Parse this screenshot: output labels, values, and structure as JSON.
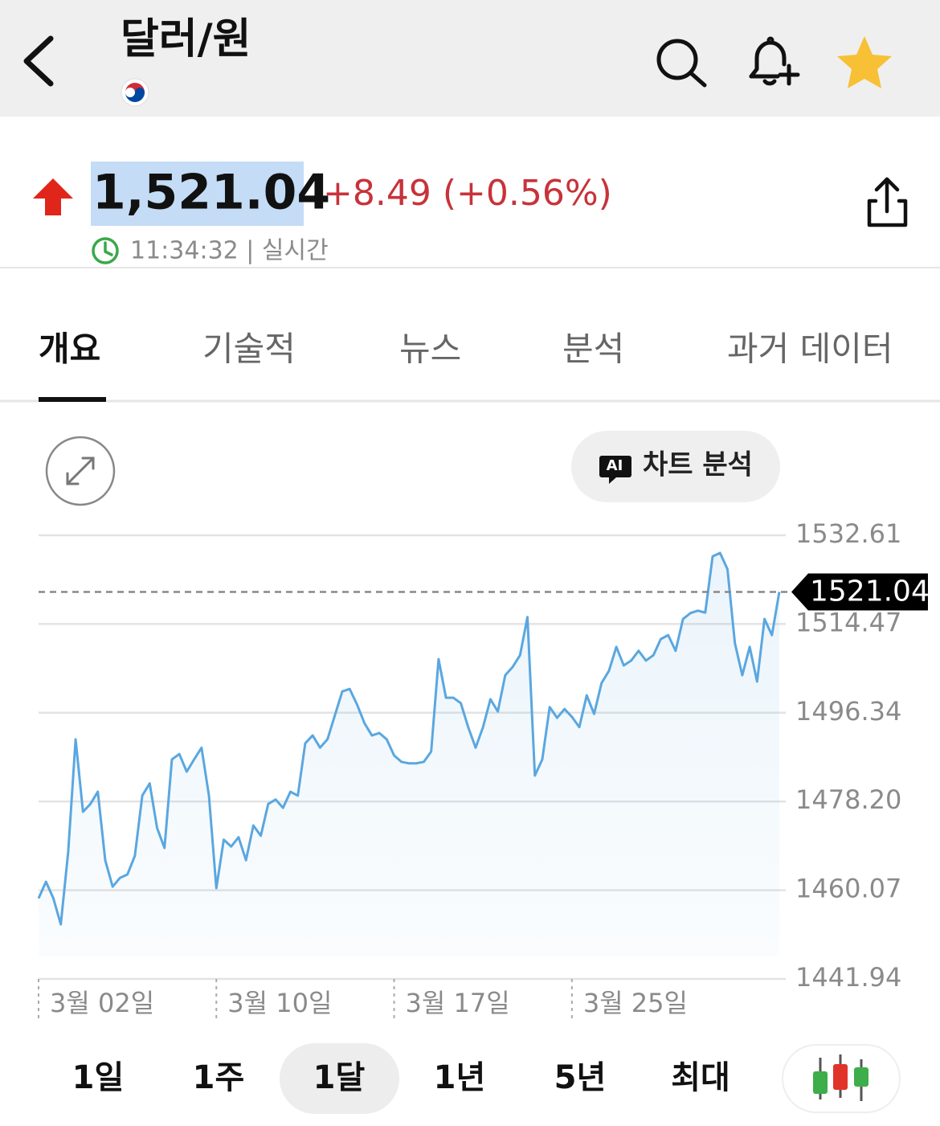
{
  "header": {
    "title": "달러/원"
  },
  "quote": {
    "price": "1,521.04",
    "change": "+8.49 (+0.56%)",
    "time": "11:34:32 | 실시간"
  },
  "tabs": [
    "개요",
    "기술적",
    "뉴스",
    "분석",
    "과거 데이터"
  ],
  "ai_badge": "AI",
  "ai_button": "차트 분석",
  "ranges": [
    "1일",
    "1주",
    "1달",
    "1년",
    "5년",
    "최대"
  ],
  "chart_data": {
    "type": "line",
    "color": "#5aa7e0",
    "grid": true,
    "ylim": [
      1441.94,
      1532.61
    ],
    "yticks": [
      1441.94,
      1460.07,
      {
        "value": 1478.2,
        "label": "1478.20"
      },
      1496.34,
      1514.47,
      1532.61
    ],
    "categories": [
      "3월 02일",
      null,
      null,
      null,
      null,
      null,
      null,
      null,
      null,
      null,
      null,
      null,
      null,
      null,
      null,
      null,
      null,
      null,
      null,
      null,
      null,
      null,
      null,
      null,
      "3월 10일",
      null,
      null,
      null,
      null,
      null,
      null,
      null,
      null,
      null,
      null,
      null,
      null,
      null,
      null,
      null,
      null,
      null,
      null,
      null,
      null,
      null,
      null,
      null,
      "3월 17일",
      null,
      null,
      null,
      null,
      null,
      null,
      null,
      null,
      null,
      null,
      null,
      null,
      null,
      null,
      null,
      null,
      null,
      null,
      null,
      null,
      null,
      null,
      null,
      "3월 25일",
      null,
      null,
      null,
      null,
      null,
      null,
      null,
      null,
      null,
      null,
      null,
      null,
      null,
      null,
      null,
      null,
      null,
      null,
      null,
      null,
      null,
      null,
      null,
      null,
      null,
      null,
      null,
      null
    ],
    "values": [
      1458.4,
      1461.8,
      1458.4,
      1453.1,
      1467.9,
      1490.9,
      1476.1,
      1477.7,
      1480.2,
      1466.2,
      1460.8,
      1462.6,
      1463.3,
      1467.1,
      1479.4,
      1481.9,
      1472.8,
      1468.7,
      1486.8,
      1487.9,
      1484.3,
      1486.8,
      1489.2,
      1479.4,
      1460.5,
      1470.4,
      1469.0,
      1470.9,
      1466.2,
      1473.3,
      1471.2,
      1477.7,
      1478.6,
      1476.9,
      1480.2,
      1479.4,
      1490.1,
      1491.7,
      1489.2,
      1490.9,
      1495.8,
      1500.7,
      1501.2,
      1498.0,
      1494.2,
      1491.7,
      1492.2,
      1490.9,
      1487.6,
      1486.3,
      1486.0,
      1486.0,
      1486.3,
      1488.4,
      1507.3,
      1499.4,
      1499.4,
      1498.3,
      1493.4,
      1489.2,
      1493.4,
      1499.1,
      1496.6,
      1504.0,
      1505.7,
      1508.1,
      1515.9,
      1483.5,
      1486.8,
      1497.5,
      1495.3,
      1497.1,
      1495.5,
      1493.4,
      1499.9,
      1496.1,
      1502.4,
      1504.9,
      1509.8,
      1506.0,
      1507.0,
      1509.0,
      1507.0,
      1508.1,
      1511.4,
      1512.2,
      1509.0,
      1515.5,
      1516.7,
      1517.2,
      1516.8,
      1528.3,
      1529.0,
      1525.7,
      1510.6,
      1504.0,
      1509.8,
      1502.7,
      1515.5,
      1512.2,
      1521.04
    ]
  }
}
